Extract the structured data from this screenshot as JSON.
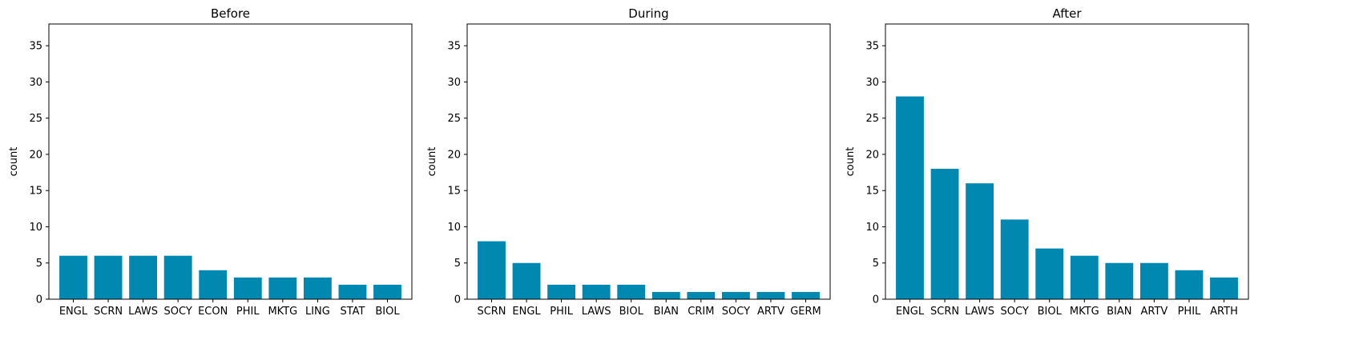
{
  "chart_data": [
    {
      "type": "bar",
      "title": "Before",
      "xlabel": "",
      "ylabel": "count",
      "ylim": [
        0,
        38
      ],
      "yticks": [
        0,
        5,
        10,
        15,
        20,
        25,
        30,
        35
      ],
      "bar_color": "#0088b0",
      "categories": [
        "ENGL",
        "SCRN",
        "LAWS",
        "SOCY",
        "ECON",
        "PHIL",
        "MKTG",
        "LING",
        "STAT",
        "BIOL"
      ],
      "values": [
        6,
        6,
        6,
        6,
        4,
        3,
        3,
        3,
        2,
        2
      ]
    },
    {
      "type": "bar",
      "title": "During",
      "xlabel": "",
      "ylabel": "count",
      "ylim": [
        0,
        38
      ],
      "yticks": [
        0,
        5,
        10,
        15,
        20,
        25,
        30,
        35
      ],
      "bar_color": "#0088b0",
      "categories": [
        "SCRN",
        "ENGL",
        "PHIL",
        "LAWS",
        "BIOL",
        "BIAN",
        "CRIM",
        "SOCY",
        "ARTV",
        "GERM"
      ],
      "values": [
        8,
        5,
        2,
        2,
        2,
        1,
        1,
        1,
        1,
        1
      ]
    },
    {
      "type": "bar",
      "title": "After",
      "xlabel": "",
      "ylabel": "count",
      "ylim": [
        0,
        38
      ],
      "yticks": [
        0,
        5,
        10,
        15,
        20,
        25,
        30,
        35
      ],
      "bar_color": "#0088b0",
      "categories": [
        "ENGL",
        "SCRN",
        "LAWS",
        "SOCY",
        "BIOL",
        "MKTG",
        "BIAN",
        "ARTV",
        "PHIL",
        "ARTH"
      ],
      "values": [
        28,
        18,
        16,
        11,
        7,
        6,
        5,
        5,
        4,
        3
      ]
    }
  ]
}
